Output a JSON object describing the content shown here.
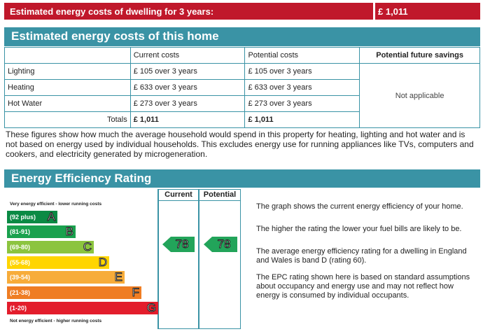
{
  "banner": {
    "label": "Estimated energy costs of dwelling for 3 years:",
    "value": "£ 1,011"
  },
  "costs_section": {
    "title": "Estimated energy costs of this home",
    "headers": [
      "",
      "Current costs",
      "Potential costs",
      "Potential future savings"
    ],
    "rows": [
      {
        "label": "Lighting",
        "current": "£ 105 over 3 years",
        "potential": "£ 105 over 3 years"
      },
      {
        "label": "Heating",
        "current": "£ 633 over 3 years",
        "potential": "£ 633 over 3 years"
      },
      {
        "label": "Hot Water",
        "current": "£ 273 over 3 years",
        "potential": "£ 273 over 3 years"
      }
    ],
    "savings": "Not applicable",
    "totals": {
      "label": "Totals",
      "current": "£ 1,011",
      "potential": "£ 1,011"
    },
    "note": "These figures show how much the average household would spend in this property for heating, lighting and hot water and is not based on energy used by individual households. This excludes energy use for running appliances like TVs, computers and cookers, and electricity generated by microgeneration."
  },
  "eer": {
    "title": "Energy Efficiency Rating",
    "col_current": "Current",
    "col_potential": "Potential",
    "top_caption": "Very energy efficient - lower running costs",
    "bottom_caption": "Not energy efficient - higher running costs",
    "bands": [
      {
        "range": "(92 plus)",
        "letter": "A",
        "color": "#0b8a44"
      },
      {
        "range": "(81-91)",
        "letter": "B",
        "color": "#1aa14e"
      },
      {
        "range": "(69-80)",
        "letter": "C",
        "color": "#8cc43f"
      },
      {
        "range": "(55-68)",
        "letter": "D",
        "color": "#ffd500"
      },
      {
        "range": "(39-54)",
        "letter": "E",
        "color": "#f7ac3a"
      },
      {
        "range": "(21-38)",
        "letter": "F",
        "color": "#ef7d23"
      },
      {
        "range": "(1-20)",
        "letter": "G",
        "color": "#e31d2c"
      }
    ],
    "current_rating": "78",
    "potential_rating": "78",
    "arrow_color": "#22a45a",
    "text": [
      "The graph shows the current energy efficiency of your home.",
      "The higher the rating the lower your fuel bills are likely to be.",
      "The average energy efficiency rating for a dwelling in England and Wales is band D (rating 60).",
      "The EPC rating shown here is based on standard assumptions about occupancy and energy use and may not reflect how energy is consumed by individual occupants."
    ]
  }
}
